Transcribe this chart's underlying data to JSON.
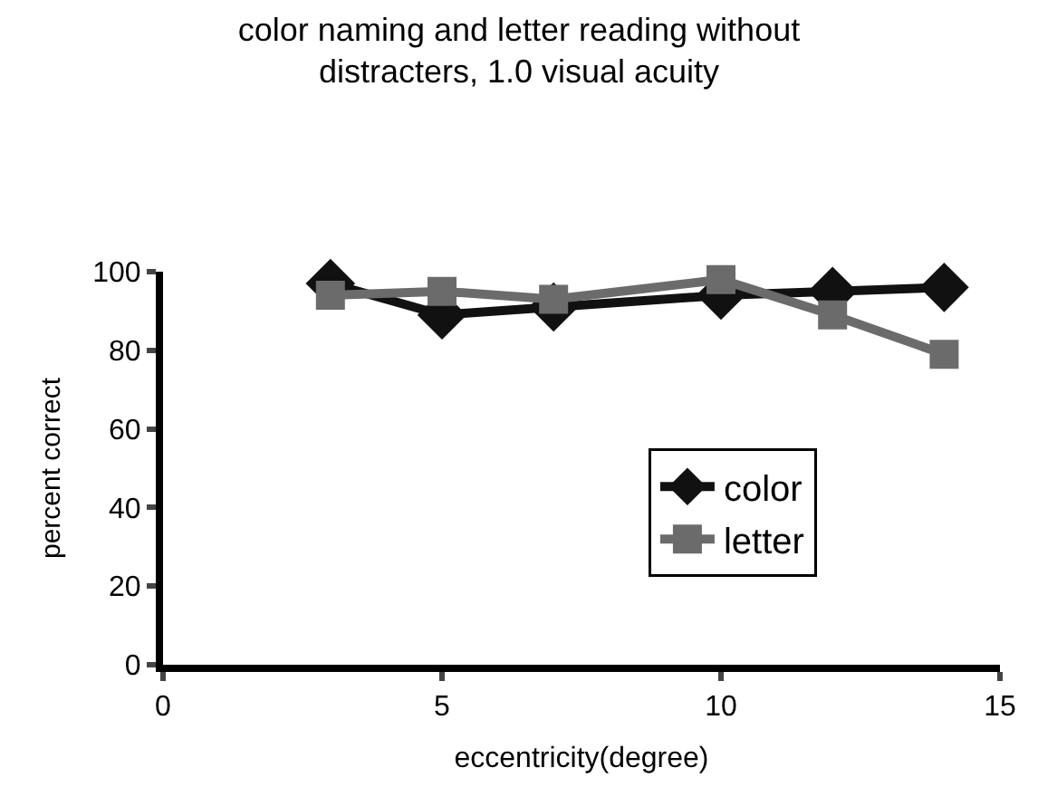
{
  "chart_data": {
    "type": "line",
    "title": "color naming and letter reading without distracters, 1.0 visual acuity",
    "xlabel": "eccentricity(degree)",
    "ylabel": "percent correct",
    "x": [
      3,
      5,
      7,
      10,
      12,
      14
    ],
    "series": [
      {
        "name": "color",
        "color": "#111111",
        "marker": "diamond",
        "values": [
          97,
          89,
          91,
          94,
          95,
          96
        ]
      },
      {
        "name": "letter",
        "color": "#6b6b6b",
        "marker": "square",
        "values": [
          94,
          95,
          93,
          98,
          89,
          79
        ]
      }
    ],
    "xlim": [
      0,
      15
    ],
    "xticks": [
      0,
      5,
      10,
      15
    ],
    "ylim": [
      0,
      100
    ],
    "yticks": [
      0,
      20,
      40,
      60,
      80,
      100
    ],
    "legend": "right",
    "line_style": "solid"
  }
}
